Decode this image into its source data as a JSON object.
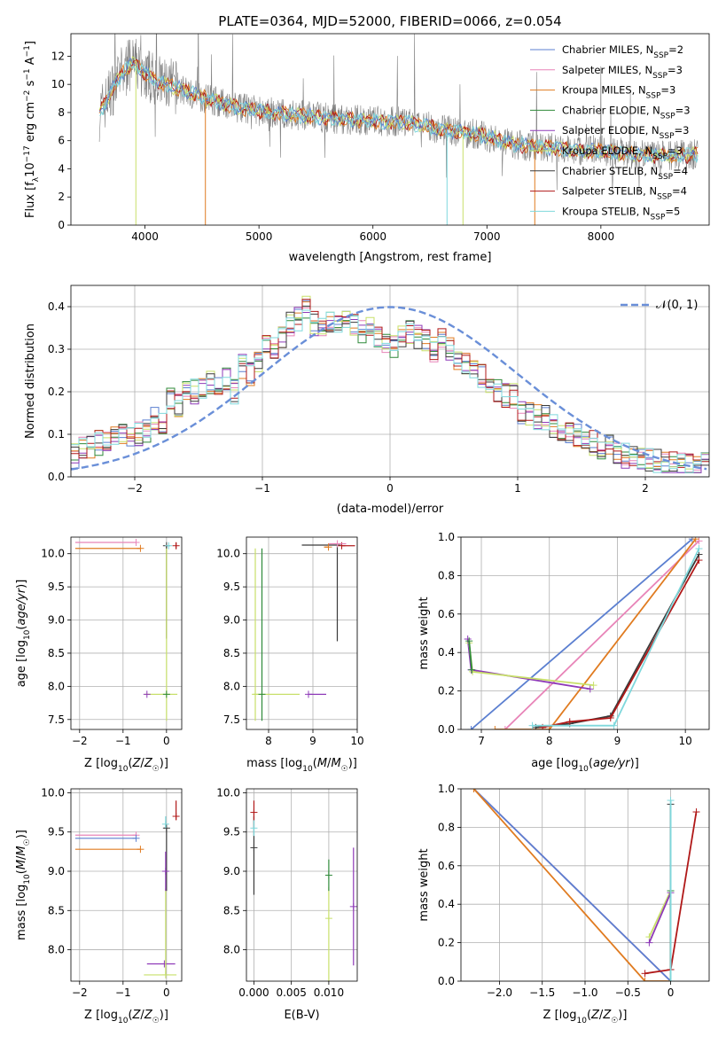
{
  "figure": {
    "title": "PLATE=0364, MJD=52000, FIBERID=0066, z=0.054"
  },
  "colors": {
    "chabrier_miles": "#5b7fd0",
    "salpeter_miles": "#e884b8",
    "kroupa_miles": "#e07b20",
    "chabrier_elodie": "#2f8a3a",
    "salpeter_elodie": "#8e3ab8",
    "kroupa_elodie": "#c8e06a",
    "chabrier_stelib": "#3a3a3a",
    "salpeter_stelib": "#b01818",
    "kroupa_stelib": "#7fd8dc",
    "data": "#808080",
    "normal": "#6a8fd8",
    "grid": "#b0b0b0"
  },
  "legend": [
    {
      "key": "chabrier_miles",
      "name": "Chabrier MILES, N",
      "sub": "SSP",
      "eq": "=2"
    },
    {
      "key": "salpeter_miles",
      "name": "Salpeter MILES, N",
      "sub": "SSP",
      "eq": "=3"
    },
    {
      "key": "kroupa_miles",
      "name": "Kroupa MILES, N",
      "sub": "SSP",
      "eq": "=3"
    },
    {
      "key": "chabrier_elodie",
      "name": "Chabrier ELODIE, N",
      "sub": "SSP",
      "eq": "=3"
    },
    {
      "key": "salpeter_elodie",
      "name": "Salpeter ELODIE, N",
      "sub": "SSP",
      "eq": "=3"
    },
    {
      "key": "kroupa_elodie",
      "name": "Kroupa ELODIE, N",
      "sub": "SSP",
      "eq": "=3"
    },
    {
      "key": "chabrier_stelib",
      "name": "Chabrier STELIB, N",
      "sub": "SSP",
      "eq": "=4"
    },
    {
      "key": "salpeter_stelib",
      "name": "Salpeter STELIB, N",
      "sub": "SSP",
      "eq": "=4"
    },
    {
      "key": "kroupa_stelib",
      "name": "Kroupa STELIB, N",
      "sub": "SSP",
      "eq": "=5"
    }
  ],
  "chart_data": [
    {
      "id": "spectrum",
      "type": "line",
      "xlabel": "wavelength [Angstrom, rest frame]",
      "ylabel": "Flux [f_λ 10^-17 erg cm^-2 s^-1 A^-1]",
      "xlim": [
        3350,
        8950
      ],
      "ylim": [
        0,
        13.6
      ],
      "xticks": [
        4000,
        5000,
        6000,
        7000,
        8000
      ],
      "yticks": [
        0,
        2,
        4,
        6,
        8,
        10,
        12
      ],
      "grid": false,
      "legend_loc": "right",
      "model_continuum": {
        "x": [
          3600,
          3700,
          3800,
          3900,
          4000,
          4100,
          4300,
          4500,
          4800,
          5000,
          5200,
          5500,
          5800,
          6000,
          6300,
          6600,
          6800,
          7000,
          7200,
          7400,
          7600,
          7800,
          8000,
          8300,
          8600,
          8800
        ],
        "y": [
          7.9,
          9.5,
          10.8,
          11.5,
          10.8,
          10.2,
          9.7,
          9.1,
          8.4,
          8.1,
          7.9,
          7.7,
          7.5,
          7.4,
          7.3,
          6.8,
          6.6,
          6.3,
          5.8,
          5.6,
          5.5,
          5.3,
          5.3,
          5.0,
          4.9,
          5.0
        ]
      }
    },
    {
      "id": "residuals",
      "type": "histogram",
      "xlabel": "(data-model)/error",
      "ylabel": "Normed distribution",
      "xlim": [
        -2.5,
        2.5
      ],
      "ylim": [
        0,
        0.45
      ],
      "xticks": [
        -2,
        -1,
        0,
        1,
        2
      ],
      "yticks": [
        0.0,
        0.1,
        0.2,
        0.3,
        0.4
      ],
      "grid": true,
      "legend_label": "𝒩(0, 1)",
      "legend_loc": "upper right",
      "bin_width": 0.1,
      "bin_start": -2.5,
      "hist_shape": [
        0.05,
        0.07,
        0.07,
        0.08,
        0.08,
        0.09,
        0.095,
        0.1,
        0.1,
        0.105,
        0.14,
        0.13,
        0.18,
        0.17,
        0.2,
        0.2,
        0.21,
        0.22,
        0.21,
        0.23,
        0.2,
        0.26,
        0.24,
        0.27,
        0.31,
        0.3,
        0.33,
        0.36,
        0.37,
        0.4,
        0.36,
        0.35,
        0.37,
        0.36,
        0.37,
        0.36,
        0.34,
        0.35,
        0.33,
        0.32,
        0.31,
        0.33,
        0.34,
        0.33,
        0.32,
        0.3,
        0.33,
        0.3,
        0.27,
        0.27,
        0.25,
        0.24,
        0.22,
        0.2,
        0.19,
        0.19,
        0.15,
        0.15,
        0.14,
        0.14,
        0.12,
        0.1,
        0.11,
        0.1,
        0.09,
        0.08,
        0.07,
        0.075,
        0.06,
        0.05,
        0.045,
        0.04,
        0.04,
        0.035,
        0.03,
        0.03,
        0.03,
        0.03,
        0.03,
        0.03
      ],
      "normal": {
        "mu": 0,
        "sigma": 1
      }
    },
    {
      "id": "age_vs_Z",
      "type": "errorbar",
      "xlabel": "Z [log10(Z/Z☉)]",
      "ylabel": "age [log10(age/yr)]",
      "xlim": [
        -2.2,
        0.35
      ],
      "ylim": [
        7.35,
        10.25
      ],
      "xticks": [
        -2,
        -1,
        0
      ],
      "yticks": [
        7.5,
        8.0,
        8.5,
        9.0,
        9.5,
        10.0
      ],
      "grid": true,
      "points": [
        {
          "key": "salpeter_miles",
          "x": -0.7,
          "y": 10.17,
          "xerr": [
            1.4,
            0
          ],
          "yerr": [
            0,
            0
          ]
        },
        {
          "key": "kroupa_miles",
          "x": -0.6,
          "y": 10.08,
          "xerr": [
            1.5,
            0
          ],
          "yerr": [
            0,
            0
          ]
        },
        {
          "key": "chabrier_stelib",
          "x": 0.0,
          "y": 10.12,
          "xerr": [
            0,
            0
          ],
          "yerr": [
            1.4,
            0
          ]
        },
        {
          "key": "salpeter_stelib",
          "x": 0.22,
          "y": 10.12,
          "xerr": [
            0,
            0
          ],
          "yerr": [
            0.05,
            0.05
          ]
        },
        {
          "key": "kroupa_stelib",
          "x": 0.05,
          "y": 10.12,
          "xerr": [
            0.03,
            0
          ],
          "yerr": [
            0,
            0
          ]
        },
        {
          "key": "kroupa_elodie",
          "x": 0.0,
          "y": 7.88,
          "xerr": [
            0.5,
            0.25
          ],
          "yerr": [
            0.4,
            2.2
          ]
        },
        {
          "key": "chabrier_elodie",
          "x": 0.0,
          "y": 7.88,
          "xerr": [
            0,
            0
          ],
          "yerr": [
            0,
            0
          ]
        },
        {
          "key": "salpeter_elodie",
          "x": -0.45,
          "y": 7.88,
          "xerr": [
            0,
            0
          ],
          "yerr": [
            0,
            0
          ]
        }
      ]
    },
    {
      "id": "age_vs_mass",
      "type": "errorbar",
      "xlabel": "mass [log10(M/M☉)]",
      "ylabel": "",
      "xlim": [
        7.5,
        10.0
      ],
      "ylim": [
        7.35,
        10.25
      ],
      "xticks": [
        8,
        9,
        10
      ],
      "yticks": [
        7.5,
        8.0,
        8.5,
        9.0,
        9.5,
        10.0
      ],
      "grid": true,
      "points": [
        {
          "key": "chabrier_stelib",
          "x": 9.55,
          "y": 10.13,
          "xerr": [
            0.8,
            0
          ],
          "yerr": [
            1.45,
            0
          ]
        },
        {
          "key": "salpeter_stelib",
          "x": 9.65,
          "y": 10.12,
          "xerr": [
            0,
            0.3
          ],
          "yerr": [
            0,
            0
          ]
        },
        {
          "key": "salpeter_miles",
          "x": 9.55,
          "y": 10.15,
          "xerr": [
            0.2,
            0.2
          ],
          "yerr": [
            0,
            0
          ]
        },
        {
          "key": "kroupa_miles",
          "x": 9.35,
          "y": 10.1,
          "xerr": [
            0.1,
            0
          ],
          "yerr": [
            0,
            0
          ]
        },
        {
          "key": "kroupa_elodie",
          "x": 7.7,
          "y": 7.88,
          "xerr": [
            0.05,
            1.0
          ],
          "yerr": [
            0.4,
            2.2
          ]
        },
        {
          "key": "salpeter_elodie",
          "x": 8.9,
          "y": 7.88,
          "xerr": [
            0.0,
            0.4
          ],
          "yerr": [
            0,
            0
          ]
        },
        {
          "key": "chabrier_elodie",
          "x": 7.85,
          "y": 7.88,
          "xerr": [
            0,
            0
          ],
          "yerr": [
            0.4,
            2.2
          ]
        }
      ]
    },
    {
      "id": "mass_weight_vs_age",
      "type": "line",
      "xlabel": "age [log10(age/yr)]",
      "ylabel": "mass weight",
      "xlim": [
        6.7,
        10.35
      ],
      "ylim": [
        0,
        1.0
      ],
      "xticks": [
        7,
        8,
        9,
        10
      ],
      "yticks": [
        0.0,
        0.2,
        0.4,
        0.6,
        0.8,
        1.0
      ],
      "grid": true,
      "series": [
        {
          "key": "chabrier_miles",
          "x": [
            6.85,
            10.1
          ],
          "y": [
            0.0,
            0.99
          ]
        },
        {
          "key": "salpeter_miles",
          "x": [
            7.35,
            10.2
          ],
          "y": [
            0.0,
            0.98
          ]
        },
        {
          "key": "kroupa_miles",
          "x": [
            7.2,
            8.0,
            10.15
          ],
          "y": [
            0.0,
            0.0,
            0.99
          ]
        },
        {
          "key": "salpeter_elodie",
          "x": [
            6.8,
            6.85,
            8.6
          ],
          "y": [
            0.47,
            0.31,
            0.21
          ]
        },
        {
          "key": "kroupa_elodie",
          "x": [
            6.82,
            6.87,
            8.65
          ],
          "y": [
            0.45,
            0.3,
            0.23
          ]
        },
        {
          "key": "chabrier_elodie",
          "x": [
            6.82,
            6.86
          ],
          "y": [
            0.46,
            0.31
          ]
        },
        {
          "key": "chabrier_stelib",
          "x": [
            7.8,
            8.3,
            8.9,
            10.2
          ],
          "y": [
            0.01,
            0.03,
            0.07,
            0.91
          ]
        },
        {
          "key": "salpeter_stelib",
          "x": [
            7.9,
            8.3,
            8.9,
            10.2
          ],
          "y": [
            0.01,
            0.04,
            0.06,
            0.88
          ]
        },
        {
          "key": "kroupa_stelib",
          "x": [
            7.75,
            8.95,
            10.2
          ],
          "y": [
            0.02,
            0.02,
            0.94
          ]
        }
      ]
    },
    {
      "id": "mass_vs_Z",
      "type": "errorbar",
      "xlabel": "Z [log10(Z/Z☉)]",
      "ylabel": "mass [log10(M/M☉)]",
      "xlim": [
        -2.2,
        0.35
      ],
      "ylim": [
        7.6,
        10.05
      ],
      "xticks": [
        -2,
        -1,
        0
      ],
      "yticks": [
        8.0,
        8.5,
        9.0,
        9.5,
        10.0
      ],
      "grid": true,
      "points": [
        {
          "key": "salpeter_miles",
          "x": -0.7,
          "y": 9.46,
          "xerr": [
            1.4,
            0
          ],
          "yerr": [
            0,
            0
          ]
        },
        {
          "key": "chabrier_miles",
          "x": -0.7,
          "y": 9.42,
          "xerr": [
            1.4,
            0
          ],
          "yerr": [
            0,
            0
          ]
        },
        {
          "key": "kroupa_miles",
          "x": -0.6,
          "y": 9.28,
          "xerr": [
            1.5,
            0
          ],
          "yerr": [
            0,
            0
          ]
        },
        {
          "key": "chabrier_stelib",
          "x": 0.0,
          "y": 9.55,
          "xerr": [
            0.05,
            0
          ],
          "yerr": [
            0.8,
            0
          ]
        },
        {
          "key": "salpeter_stelib",
          "x": 0.22,
          "y": 9.7,
          "xerr": [
            0,
            0
          ],
          "yerr": [
            0.05,
            0.2
          ]
        },
        {
          "key": "kroupa_stelib",
          "x": -0.02,
          "y": 9.6,
          "xerr": [
            0,
            0
          ],
          "yerr": [
            0.05,
            0.1
          ]
        },
        {
          "key": "salpeter_elodie",
          "x": -0.05,
          "y": 7.82,
          "xerr": [
            0.4,
            0.25
          ],
          "yerr": [
            0,
            0
          ]
        },
        {
          "key": "kroupa_elodie",
          "x": -0.02,
          "y": 7.68,
          "xerr": [
            0.5,
            0.25
          ],
          "yerr": [
            0,
            1.1
          ]
        },
        {
          "key": "salpeter_elodie",
          "x": -0.02,
          "y": 9.0,
          "xerr": [
            0,
            0
          ],
          "yerr": [
            0.25,
            0.25
          ]
        }
      ]
    },
    {
      "id": "mass_vs_ebv",
      "type": "errorbar",
      "xlabel": "E(B-V)",
      "ylabel": "",
      "xlim": [
        -0.001,
        0.0138
      ],
      "ylim": [
        7.6,
        10.05
      ],
      "xticks": [
        0.0,
        0.005,
        0.01
      ],
      "xtick_labels": [
        "0.000",
        "0.005",
        "0.010"
      ],
      "yticks": [
        8.0,
        8.5,
        9.0,
        9.5,
        10.0
      ],
      "grid": true,
      "points": [
        {
          "key": "chabrier_stelib",
          "x": 0.0,
          "y": 9.3,
          "xerr": [
            0,
            0
          ],
          "yerr": [
            0.6,
            0.4
          ]
        },
        {
          "key": "salpeter_stelib",
          "x": 0.0,
          "y": 9.75,
          "xerr": [
            0,
            0
          ],
          "yerr": [
            0.2,
            0.15
          ]
        },
        {
          "key": "kroupa_stelib",
          "x": 0.0,
          "y": 9.55,
          "xerr": [
            0,
            0
          ],
          "yerr": [
            0.1,
            0.1
          ]
        },
        {
          "key": "kroupa_elodie",
          "x": 0.01,
          "y": 8.4,
          "xerr": [
            0,
            0
          ],
          "yerr": [
            0.8,
            0.4
          ]
        },
        {
          "key": "chabrier_elodie",
          "x": 0.01,
          "y": 8.95,
          "xerr": [
            0,
            0
          ],
          "yerr": [
            0.2,
            0.2
          ]
        },
        {
          "key": "salpeter_elodie",
          "x": 0.0133,
          "y": 8.55,
          "xerr": [
            0,
            0
          ],
          "yerr": [
            0.75,
            0.75
          ]
        }
      ]
    },
    {
      "id": "mass_weight_vs_Z",
      "type": "line",
      "xlabel": "Z [log10(Z/Z☉)]",
      "ylabel": "mass weight",
      "xlim": [
        -2.45,
        0.45
      ],
      "ylim": [
        0,
        1.0
      ],
      "xticks": [
        -2.0,
        -1.5,
        -1.0,
        -0.5,
        0.0
      ],
      "yticks": [
        0.0,
        0.2,
        0.4,
        0.6,
        0.8,
        1.0
      ],
      "grid": true,
      "series": [
        {
          "key": "salpeter_miles",
          "x": [
            -2.3,
            0.0
          ],
          "y": [
            1.0,
            0.0
          ]
        },
        {
          "key": "chabrier_miles",
          "x": [
            -2.3,
            0.0
          ],
          "y": [
            1.0,
            0.0
          ]
        },
        {
          "key": "kroupa_miles",
          "x": [
            -2.3,
            -0.3,
            0.0
          ],
          "y": [
            1.0,
            0.0,
            0.0
          ]
        },
        {
          "key": "kroupa_elodie",
          "x": [
            -0.25,
            0.0
          ],
          "y": [
            0.23,
            0.47
          ]
        },
        {
          "key": "salpeter_elodie",
          "x": [
            -0.25,
            0.0
          ],
          "y": [
            0.2,
            0.46
          ]
        },
        {
          "key": "chabrier_elodie",
          "x": [
            0.0,
            0.0
          ],
          "y": [
            0.0,
            0.47
          ]
        },
        {
          "key": "chabrier_stelib",
          "x": [
            0.0,
            0.0
          ],
          "y": [
            0.06,
            0.92
          ]
        },
        {
          "key": "salpeter_stelib",
          "x": [
            -0.3,
            0.0,
            0.3
          ],
          "y": [
            0.04,
            0.06,
            0.88
          ]
        },
        {
          "key": "kroupa_stelib",
          "x": [
            0.0,
            0.0
          ],
          "y": [
            0.0,
            0.94
          ]
        }
      ]
    }
  ]
}
